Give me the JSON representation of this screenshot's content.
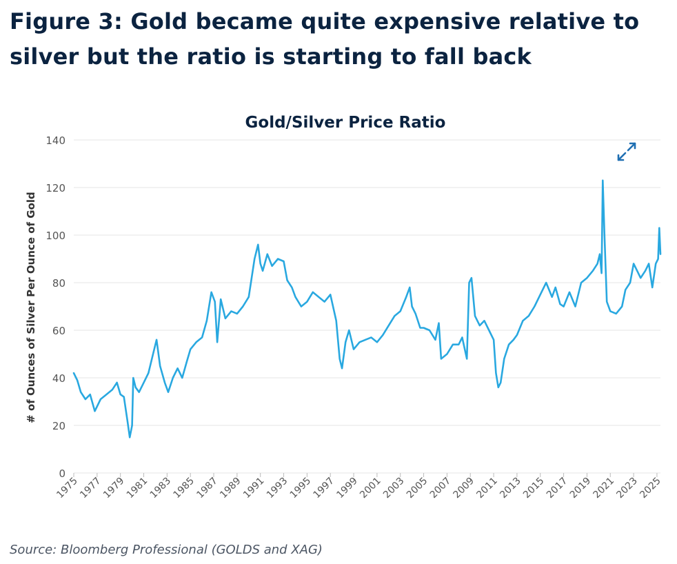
{
  "figure": {
    "title": "Figure 3: Gold became quite expensive relative to silver but the ratio is starting to fall back",
    "source": "Source: Bloomberg Professional (GOLDS and XAG)"
  },
  "icons": {
    "expand": "expand-arrows-icon"
  },
  "colors": {
    "line": "#29a8e0",
    "grid": "#e4e4e4",
    "text": "#0b2340",
    "axis_text": "#555555",
    "icon": "#1f6fb2"
  },
  "chart_data": {
    "type": "line",
    "title": "Gold/Silver Price Ratio",
    "xlabel": "",
    "ylabel": "# of Ounces of Silver Per Ounce of Gold",
    "ylim": [
      0,
      140
    ],
    "yticks": [
      0,
      20,
      40,
      60,
      80,
      100,
      120,
      140
    ],
    "xlim": [
      1975,
      2025.3
    ],
    "xticks": [
      "1975",
      "1977",
      "1979",
      "1981",
      "1983",
      "1985",
      "1987",
      "1989",
      "1991",
      "1993",
      "1995",
      "1997",
      "1999",
      "2001",
      "2003",
      "2005",
      "2007",
      "2009",
      "2011",
      "2013",
      "2015",
      "2017",
      "2019",
      "2021",
      "2023",
      "2025"
    ],
    "grid": true,
    "legend": "none",
    "series": [
      {
        "name": "",
        "x": [
          1975.0,
          1975.3,
          1975.6,
          1976.0,
          1976.4,
          1976.8,
          1977.3,
          1977.8,
          1978.3,
          1978.7,
          1979.0,
          1979.3,
          1979.6,
          1979.8,
          1980.0,
          1980.1,
          1980.3,
          1980.6,
          1981.0,
          1981.4,
          1981.8,
          1982.1,
          1982.4,
          1982.8,
          1983.1,
          1983.5,
          1983.9,
          1984.3,
          1984.7,
          1985.0,
          1985.5,
          1986.0,
          1986.4,
          1986.8,
          1987.1,
          1987.3,
          1987.6,
          1988.0,
          1988.5,
          1989.0,
          1989.5,
          1990.0,
          1990.5,
          1990.8,
          1991.0,
          1991.2,
          1991.6,
          1992.0,
          1992.5,
          1993.0,
          1993.3,
          1993.7,
          1994.0,
          1994.5,
          1995.0,
          1995.5,
          1996.0,
          1996.5,
          1997.0,
          1997.5,
          1997.8,
          1998.0,
          1998.3,
          1998.6,
          1999.0,
          1999.5,
          2000.0,
          2000.5,
          2001.0,
          2001.5,
          2002.0,
          2002.5,
          2003.0,
          2003.5,
          2003.8,
          2004.0,
          2004.3,
          2004.7,
          2005.0,
          2005.5,
          2006.0,
          2006.3,
          2006.5,
          2007.0,
          2007.5,
          2008.0,
          2008.3,
          2008.7,
          2008.9,
          2009.1,
          2009.4,
          2009.8,
          2010.2,
          2010.6,
          2011.0,
          2011.2,
          2011.4,
          2011.6,
          2011.9,
          2012.3,
          2012.7,
          2013.0,
          2013.5,
          2014.0,
          2014.5,
          2015.0,
          2015.5,
          2016.0,
          2016.3,
          2016.7,
          2017.0,
          2017.5,
          2018.0,
          2018.5,
          2019.0,
          2019.5,
          2019.9,
          2020.1,
          2020.25,
          2020.35,
          2020.5,
          2020.7,
          2021.0,
          2021.5,
          2022.0,
          2022.3,
          2022.7,
          2023.0,
          2023.3,
          2023.6,
          2024.0,
          2024.3,
          2024.6,
          2024.9,
          2025.1,
          2025.2,
          2025.3
        ],
        "values": [
          42,
          39,
          34,
          31,
          33,
          26,
          31,
          33,
          35,
          38,
          33,
          32,
          22,
          15,
          20,
          40,
          36,
          34,
          38,
          42,
          50,
          56,
          45,
          38,
          34,
          40,
          44,
          40,
          47,
          52,
          55,
          57,
          64,
          76,
          72,
          55,
          73,
          65,
          68,
          67,
          70,
          74,
          90,
          96,
          88,
          85,
          92,
          87,
          90,
          89,
          81,
          78,
          74,
          70,
          72,
          76,
          74,
          72,
          75,
          64,
          48,
          44,
          55,
          60,
          52,
          55,
          56,
          57,
          55,
          58,
          62,
          66,
          68,
          74,
          78,
          70,
          67,
          61,
          61,
          60,
          56,
          63,
          48,
          50,
          54,
          54,
          57,
          48,
          80,
          82,
          66,
          62,
          64,
          60,
          56,
          42,
          36,
          38,
          48,
          54,
          56,
          58,
          64,
          66,
          70,
          75,
          80,
          74,
          78,
          71,
          70,
          76,
          70,
          80,
          82,
          85,
          88,
          92,
          84,
          123,
          100,
          72,
          68,
          67,
          70,
          77,
          80,
          88,
          85,
          82,
          85,
          88,
          78,
          88,
          90,
          103,
          92
        ]
      }
    ]
  }
}
